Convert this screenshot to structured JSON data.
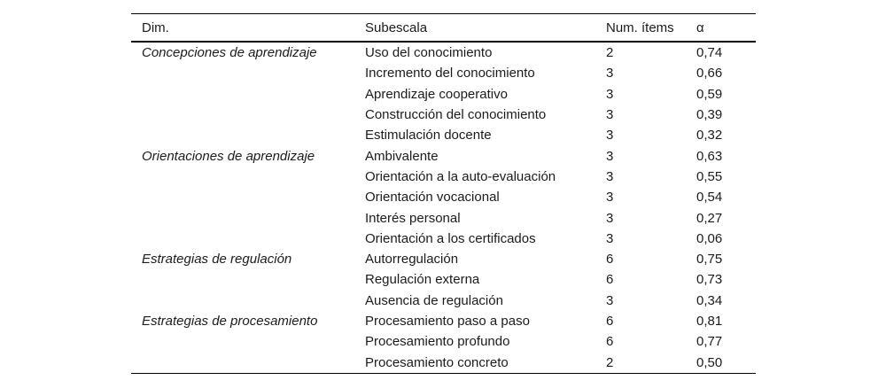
{
  "table": {
    "headers": {
      "dim": "Dim.",
      "subescala": "Subescala",
      "num_items": "Num. ítems",
      "alpha": "α"
    },
    "rows": [
      {
        "dim": "Concepciones de aprendizaje",
        "subescala": "Uso del conocimiento",
        "num_items": "2",
        "alpha": "0,74"
      },
      {
        "dim": "",
        "subescala": "Incremento del conocimiento",
        "num_items": "3",
        "alpha": "0,66"
      },
      {
        "dim": "",
        "subescala": "Aprendizaje cooperativo",
        "num_items": "3",
        "alpha": "0,59"
      },
      {
        "dim": "",
        "subescala": "Construcción del conocimiento",
        "num_items": "3",
        "alpha": "0,39"
      },
      {
        "dim": "",
        "subescala": "Estimulación docente",
        "num_items": "3",
        "alpha": "0,32"
      },
      {
        "dim": "Orientaciones de aprendizaje",
        "subescala": "Ambivalente",
        "num_items": "3",
        "alpha": "0,63"
      },
      {
        "dim": "",
        "subescala": "Orientación a la auto-evaluación",
        "num_items": "3",
        "alpha": "0,55"
      },
      {
        "dim": "",
        "subescala": "Orientación vocacional",
        "num_items": "3",
        "alpha": "0,54"
      },
      {
        "dim": "",
        "subescala": "Interés personal",
        "num_items": "3",
        "alpha": "0,27"
      },
      {
        "dim": "",
        "subescala": "Orientación a los certificados",
        "num_items": "3",
        "alpha": "0,06"
      },
      {
        "dim": "Estrategias de regulación",
        "subescala": "Autorregulación",
        "num_items": "6",
        "alpha": "0,75"
      },
      {
        "dim": "",
        "subescala": "Regulación externa",
        "num_items": "6",
        "alpha": "0,73"
      },
      {
        "dim": "",
        "subescala": "Ausencia de regulación",
        "num_items": "3",
        "alpha": "0,34"
      },
      {
        "dim": "Estrategias de procesamiento",
        "subescala": "Procesamiento paso a paso",
        "num_items": "6",
        "alpha": "0,81"
      },
      {
        "dim": "",
        "subescala": "Procesamiento profundo",
        "num_items": "6",
        "alpha": "0,77"
      },
      {
        "dim": "",
        "subescala": "Procesamiento concreto",
        "num_items": "2",
        "alpha": "0,50"
      }
    ]
  },
  "colors": {
    "background": "#ffffff",
    "text": "#1c1c1c",
    "rule": "#000000"
  }
}
